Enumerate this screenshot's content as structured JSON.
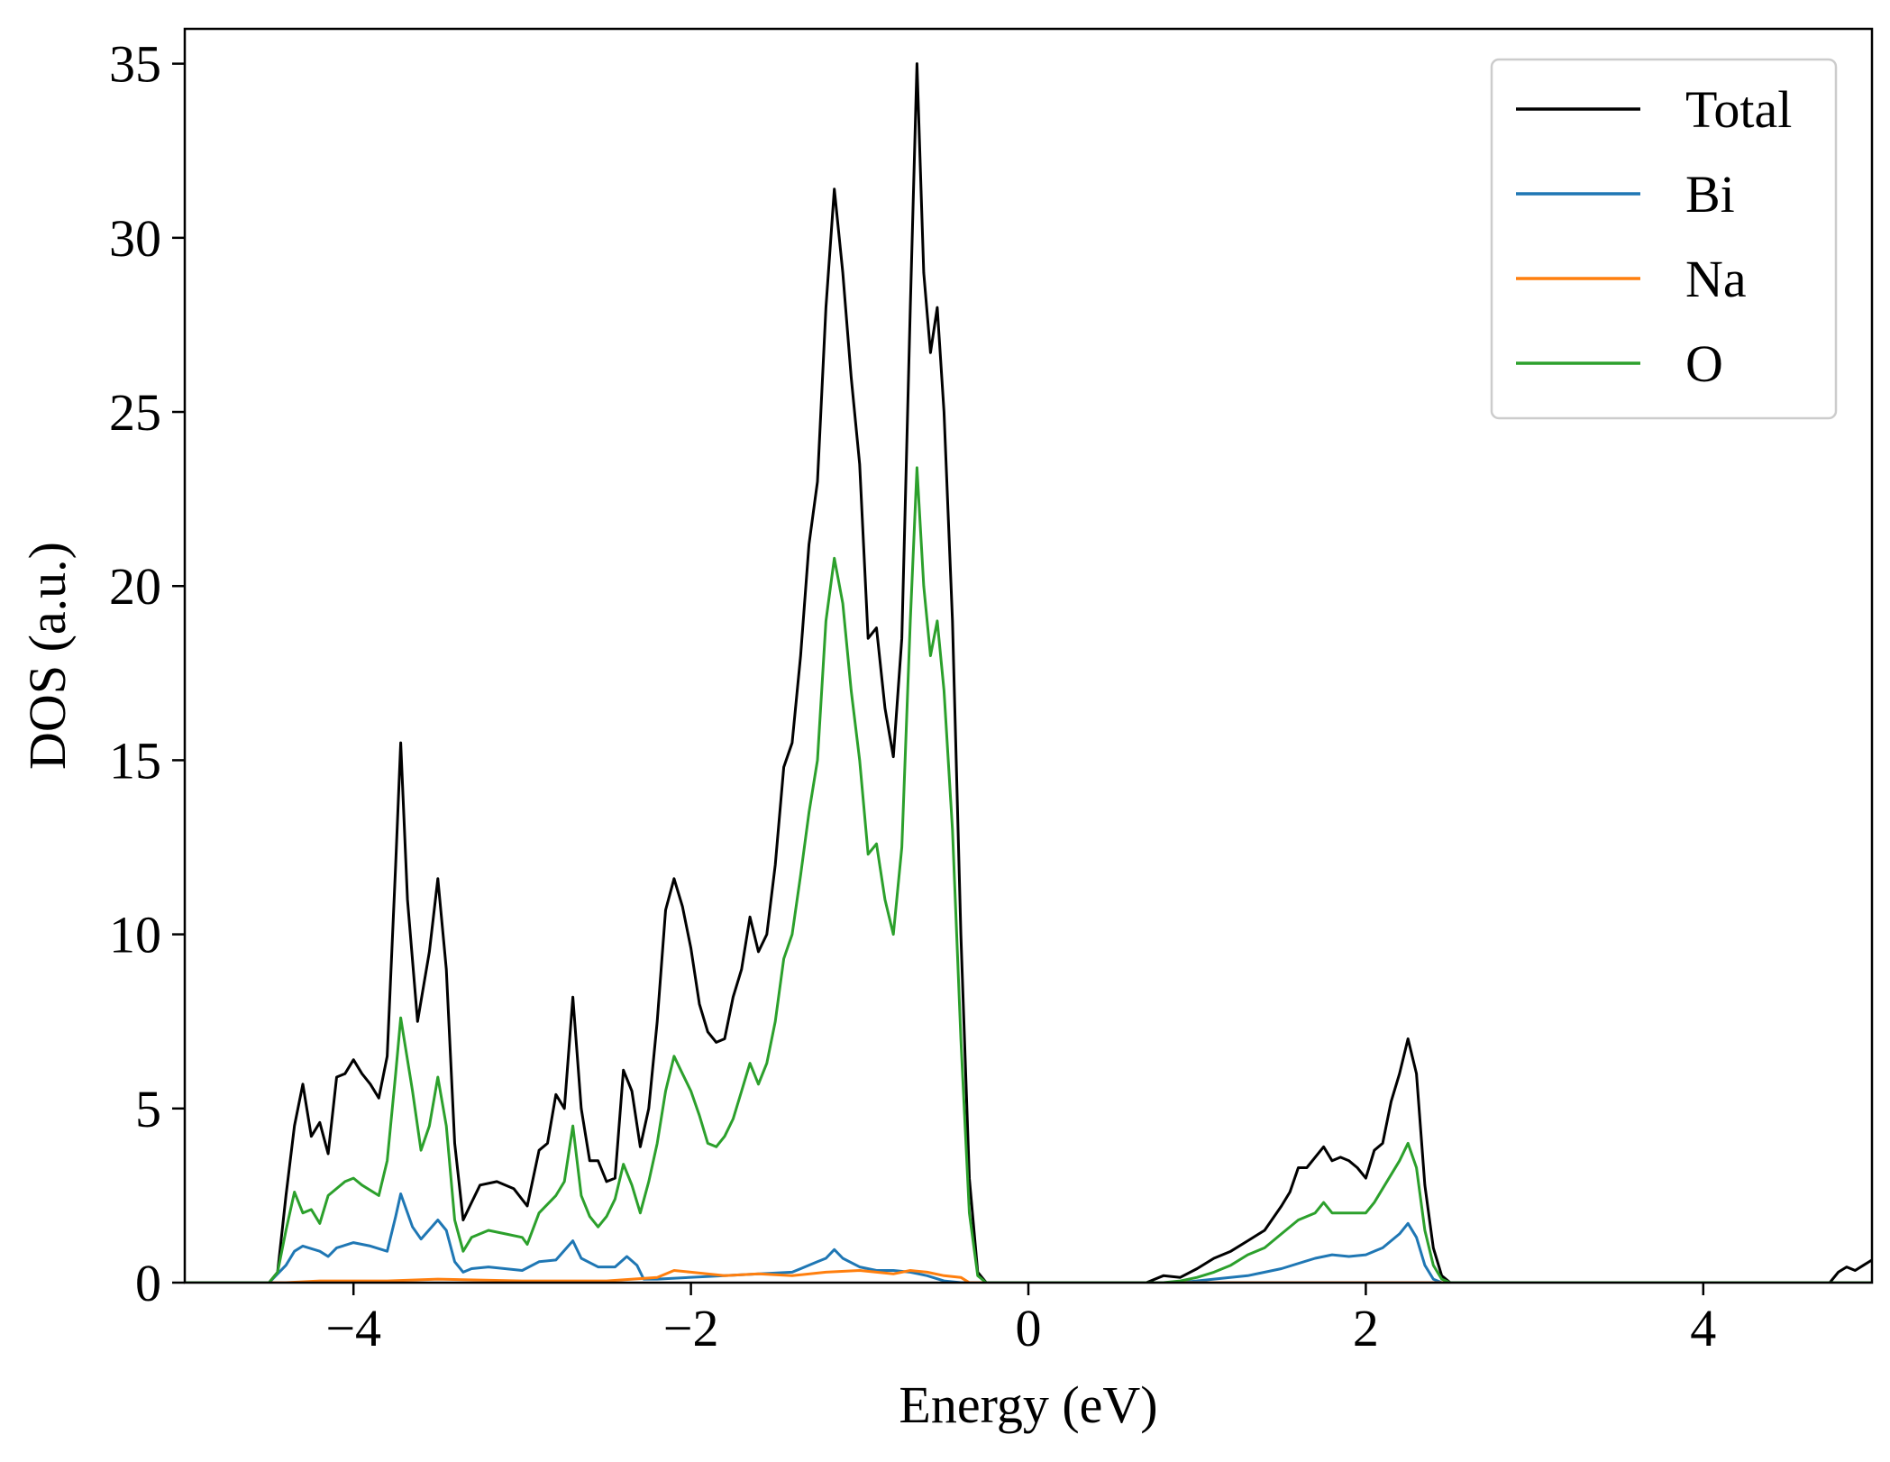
{
  "chart_data": {
    "type": "line",
    "title": "",
    "xlabel": "Energy (eV)",
    "ylabel": "DOS (a.u.)",
    "xlim": [
      -5,
      5
    ],
    "ylim": [
      0,
      36
    ],
    "xticks": [
      -4,
      -2,
      0,
      2,
      4
    ],
    "xtick_labels": [
      "−4",
      "−2",
      "0",
      "2",
      "4"
    ],
    "yticks": [
      0,
      5,
      10,
      15,
      20,
      25,
      30,
      35
    ],
    "ytick_labels": [
      "0",
      "5",
      "10",
      "15",
      "20",
      "25",
      "30",
      "35"
    ],
    "grid": false,
    "legend_position": "top-right",
    "series": [
      {
        "name": "Total",
        "color": "#000000",
        "points": [
          [
            -5,
            0
          ],
          [
            -4.5,
            0
          ],
          [
            -4.45,
            0.3
          ],
          [
            -4.4,
            2.5
          ],
          [
            -4.35,
            4.5
          ],
          [
            -4.3,
            5.7
          ],
          [
            -4.25,
            4.2
          ],
          [
            -4.2,
            4.6
          ],
          [
            -4.15,
            3.7
          ],
          [
            -4.1,
            5.9
          ],
          [
            -4.05,
            6.0
          ],
          [
            -4.0,
            6.4
          ],
          [
            -3.95,
            6.0
          ],
          [
            -3.9,
            5.7
          ],
          [
            -3.85,
            5.3
          ],
          [
            -3.8,
            6.5
          ],
          [
            -3.75,
            12.0
          ],
          [
            -3.72,
            15.5
          ],
          [
            -3.68,
            11.0
          ],
          [
            -3.62,
            7.5
          ],
          [
            -3.55,
            9.5
          ],
          [
            -3.5,
            11.6
          ],
          [
            -3.45,
            9.0
          ],
          [
            -3.4,
            4.0
          ],
          [
            -3.35,
            1.8
          ],
          [
            -3.3,
            2.3
          ],
          [
            -3.25,
            2.8
          ],
          [
            -3.15,
            2.9
          ],
          [
            -3.05,
            2.7
          ],
          [
            -2.97,
            2.2
          ],
          [
            -2.9,
            3.8
          ],
          [
            -2.85,
            4.0
          ],
          [
            -2.8,
            5.4
          ],
          [
            -2.75,
            5.0
          ],
          [
            -2.7,
            8.2
          ],
          [
            -2.65,
            5.0
          ],
          [
            -2.6,
            3.5
          ],
          [
            -2.55,
            3.5
          ],
          [
            -2.5,
            2.9
          ],
          [
            -2.45,
            3.0
          ],
          [
            -2.4,
            6.1
          ],
          [
            -2.35,
            5.5
          ],
          [
            -2.3,
            3.9
          ],
          [
            -2.25,
            5.0
          ],
          [
            -2.2,
            7.5
          ],
          [
            -2.15,
            10.7
          ],
          [
            -2.1,
            11.6
          ],
          [
            -2.05,
            10.8
          ],
          [
            -2.0,
            9.6
          ],
          [
            -1.95,
            8.0
          ],
          [
            -1.9,
            7.2
          ],
          [
            -1.85,
            6.9
          ],
          [
            -1.8,
            7.0
          ],
          [
            -1.75,
            8.2
          ],
          [
            -1.7,
            9.0
          ],
          [
            -1.65,
            10.5
          ],
          [
            -1.6,
            9.5
          ],
          [
            -1.55,
            10.0
          ],
          [
            -1.5,
            12.0
          ],
          [
            -1.45,
            14.8
          ],
          [
            -1.4,
            15.5
          ],
          [
            -1.35,
            18.0
          ],
          [
            -1.3,
            21.2
          ],
          [
            -1.25,
            23.0
          ],
          [
            -1.2,
            28.0
          ],
          [
            -1.15,
            31.4
          ],
          [
            -1.1,
            29.0
          ],
          [
            -1.05,
            26.0
          ],
          [
            -1.0,
            23.5
          ],
          [
            -0.95,
            18.5
          ],
          [
            -0.9,
            18.8
          ],
          [
            -0.85,
            16.5
          ],
          [
            -0.8,
            15.1
          ],
          [
            -0.75,
            18.5
          ],
          [
            -0.7,
            28.0
          ],
          [
            -0.66,
            35.0
          ],
          [
            -0.62,
            29.0
          ],
          [
            -0.58,
            26.7
          ],
          [
            -0.54,
            28.0
          ],
          [
            -0.5,
            25.0
          ],
          [
            -0.45,
            19.0
          ],
          [
            -0.4,
            10.0
          ],
          [
            -0.35,
            3.0
          ],
          [
            -0.3,
            0.3
          ],
          [
            -0.25,
            0
          ],
          [
            0.7,
            0
          ],
          [
            0.8,
            0.2
          ],
          [
            0.9,
            0.15
          ],
          [
            1.0,
            0.4
          ],
          [
            1.1,
            0.7
          ],
          [
            1.2,
            0.9
          ],
          [
            1.3,
            1.2
          ],
          [
            1.4,
            1.5
          ],
          [
            1.5,
            2.2
          ],
          [
            1.55,
            2.6
          ],
          [
            1.6,
            3.3
          ],
          [
            1.65,
            3.3
          ],
          [
            1.7,
            3.6
          ],
          [
            1.75,
            3.9
          ],
          [
            1.8,
            3.5
          ],
          [
            1.85,
            3.6
          ],
          [
            1.9,
            3.5
          ],
          [
            1.95,
            3.3
          ],
          [
            2.0,
            3.0
          ],
          [
            2.05,
            3.8
          ],
          [
            2.1,
            4.0
          ],
          [
            2.15,
            5.2
          ],
          [
            2.2,
            6.0
          ],
          [
            2.25,
            7.0
          ],
          [
            2.3,
            6.0
          ],
          [
            2.35,
            2.8
          ],
          [
            2.4,
            1.0
          ],
          [
            2.45,
            0.2
          ],
          [
            2.5,
            0
          ],
          [
            4.75,
            0
          ],
          [
            4.8,
            0.3
          ],
          [
            4.85,
            0.45
          ],
          [
            4.9,
            0.35
          ],
          [
            4.95,
            0.5
          ],
          [
            5.0,
            0.65
          ]
        ]
      },
      {
        "name": "Bi",
        "color": "#1f77b4",
        "points": [
          [
            -5,
            0
          ],
          [
            -4.5,
            0
          ],
          [
            -4.4,
            0.5
          ],
          [
            -4.35,
            0.9
          ],
          [
            -4.3,
            1.05
          ],
          [
            -4.2,
            0.9
          ],
          [
            -4.15,
            0.75
          ],
          [
            -4.1,
            1.0
          ],
          [
            -4.0,
            1.15
          ],
          [
            -3.9,
            1.05
          ],
          [
            -3.8,
            0.9
          ],
          [
            -3.75,
            1.9
          ],
          [
            -3.72,
            2.55
          ],
          [
            -3.65,
            1.6
          ],
          [
            -3.6,
            1.25
          ],
          [
            -3.5,
            1.8
          ],
          [
            -3.45,
            1.5
          ],
          [
            -3.4,
            0.6
          ],
          [
            -3.35,
            0.3
          ],
          [
            -3.3,
            0.4
          ],
          [
            -3.2,
            0.45
          ],
          [
            -3.0,
            0.35
          ],
          [
            -2.9,
            0.6
          ],
          [
            -2.8,
            0.65
          ],
          [
            -2.7,
            1.2
          ],
          [
            -2.65,
            0.7
          ],
          [
            -2.55,
            0.45
          ],
          [
            -2.45,
            0.45
          ],
          [
            -2.38,
            0.75
          ],
          [
            -2.32,
            0.5
          ],
          [
            -2.28,
            0.1
          ],
          [
            -2.2,
            0.1
          ],
          [
            -1.8,
            0.2
          ],
          [
            -1.4,
            0.3
          ],
          [
            -1.25,
            0.6
          ],
          [
            -1.2,
            0.7
          ],
          [
            -1.15,
            0.95
          ],
          [
            -1.1,
            0.7
          ],
          [
            -1.0,
            0.45
          ],
          [
            -0.9,
            0.35
          ],
          [
            -0.8,
            0.35
          ],
          [
            -0.7,
            0.3
          ],
          [
            -0.6,
            0.2
          ],
          [
            -0.5,
            0.05
          ],
          [
            -0.4,
            0
          ],
          [
            0.9,
            0
          ],
          [
            1.1,
            0.1
          ],
          [
            1.3,
            0.2
          ],
          [
            1.5,
            0.4
          ],
          [
            1.7,
            0.7
          ],
          [
            1.8,
            0.8
          ],
          [
            1.9,
            0.75
          ],
          [
            2.0,
            0.8
          ],
          [
            2.1,
            1.0
          ],
          [
            2.2,
            1.4
          ],
          [
            2.25,
            1.7
          ],
          [
            2.3,
            1.3
          ],
          [
            2.35,
            0.5
          ],
          [
            2.4,
            0.1
          ],
          [
            2.45,
            0
          ],
          [
            5,
            0
          ]
        ]
      },
      {
        "name": "Na",
        "color": "#ff7f0e",
        "points": [
          [
            -5,
            0
          ],
          [
            -4.4,
            0
          ],
          [
            -4.2,
            0.05
          ],
          [
            -3.8,
            0.05
          ],
          [
            -3.5,
            0.1
          ],
          [
            -3.0,
            0.05
          ],
          [
            -2.5,
            0.05
          ],
          [
            -2.2,
            0.15
          ],
          [
            -2.1,
            0.35
          ],
          [
            -2.0,
            0.3
          ],
          [
            -1.8,
            0.2
          ],
          [
            -1.6,
            0.25
          ],
          [
            -1.4,
            0.2
          ],
          [
            -1.2,
            0.3
          ],
          [
            -1.0,
            0.35
          ],
          [
            -0.9,
            0.3
          ],
          [
            -0.8,
            0.25
          ],
          [
            -0.7,
            0.35
          ],
          [
            -0.6,
            0.3
          ],
          [
            -0.5,
            0.2
          ],
          [
            -0.4,
            0.15
          ],
          [
            -0.35,
            0
          ],
          [
            5,
            0
          ]
        ]
      },
      {
        "name": "O",
        "color": "#2ca02c",
        "points": [
          [
            -5,
            0
          ],
          [
            -4.5,
            0
          ],
          [
            -4.45,
            0.3
          ],
          [
            -4.4,
            1.5
          ],
          [
            -4.35,
            2.6
          ],
          [
            -4.3,
            2.0
          ],
          [
            -4.25,
            2.1
          ],
          [
            -4.2,
            1.7
          ],
          [
            -4.15,
            2.5
          ],
          [
            -4.05,
            2.9
          ],
          [
            -4.0,
            3.0
          ],
          [
            -3.95,
            2.8
          ],
          [
            -3.85,
            2.5
          ],
          [
            -3.8,
            3.5
          ],
          [
            -3.75,
            6.0
          ],
          [
            -3.72,
            7.6
          ],
          [
            -3.65,
            5.5
          ],
          [
            -3.6,
            3.8
          ],
          [
            -3.55,
            4.5
          ],
          [
            -3.5,
            5.9
          ],
          [
            -3.45,
            4.5
          ],
          [
            -3.4,
            1.8
          ],
          [
            -3.35,
            0.9
          ],
          [
            -3.3,
            1.3
          ],
          [
            -3.2,
            1.5
          ],
          [
            -3.1,
            1.4
          ],
          [
            -3.0,
            1.3
          ],
          [
            -2.97,
            1.1
          ],
          [
            -2.9,
            2.0
          ],
          [
            -2.8,
            2.5
          ],
          [
            -2.75,
            2.9
          ],
          [
            -2.7,
            4.5
          ],
          [
            -2.65,
            2.5
          ],
          [
            -2.6,
            1.9
          ],
          [
            -2.55,
            1.6
          ],
          [
            -2.5,
            1.9
          ],
          [
            -2.45,
            2.4
          ],
          [
            -2.4,
            3.4
          ],
          [
            -2.35,
            2.8
          ],
          [
            -2.3,
            2.0
          ],
          [
            -2.25,
            2.9
          ],
          [
            -2.2,
            4.0
          ],
          [
            -2.15,
            5.5
          ],
          [
            -2.1,
            6.5
          ],
          [
            -2.05,
            6.0
          ],
          [
            -2.0,
            5.5
          ],
          [
            -1.95,
            4.8
          ],
          [
            -1.9,
            4.0
          ],
          [
            -1.85,
            3.9
          ],
          [
            -1.8,
            4.2
          ],
          [
            -1.75,
            4.7
          ],
          [
            -1.7,
            5.5
          ],
          [
            -1.65,
            6.3
          ],
          [
            -1.6,
            5.7
          ],
          [
            -1.55,
            6.3
          ],
          [
            -1.5,
            7.5
          ],
          [
            -1.45,
            9.3
          ],
          [
            -1.4,
            10.0
          ],
          [
            -1.35,
            11.7
          ],
          [
            -1.3,
            13.5
          ],
          [
            -1.25,
            15.0
          ],
          [
            -1.2,
            19.0
          ],
          [
            -1.15,
            20.8
          ],
          [
            -1.1,
            19.5
          ],
          [
            -1.05,
            17.0
          ],
          [
            -1.0,
            15.0
          ],
          [
            -0.95,
            12.3
          ],
          [
            -0.9,
            12.6
          ],
          [
            -0.85,
            11.0
          ],
          [
            -0.8,
            10.0
          ],
          [
            -0.75,
            12.5
          ],
          [
            -0.7,
            19.0
          ],
          [
            -0.66,
            23.4
          ],
          [
            -0.62,
            20.0
          ],
          [
            -0.58,
            18.0
          ],
          [
            -0.54,
            19.0
          ],
          [
            -0.5,
            17.0
          ],
          [
            -0.45,
            13.0
          ],
          [
            -0.4,
            7.0
          ],
          [
            -0.35,
            2.0
          ],
          [
            -0.3,
            0.2
          ],
          [
            -0.25,
            0
          ],
          [
            0.8,
            0
          ],
          [
            0.9,
            0.05
          ],
          [
            1.0,
            0.15
          ],
          [
            1.1,
            0.3
          ],
          [
            1.2,
            0.5
          ],
          [
            1.3,
            0.8
          ],
          [
            1.4,
            1.0
          ],
          [
            1.5,
            1.4
          ],
          [
            1.6,
            1.8
          ],
          [
            1.7,
            2.0
          ],
          [
            1.75,
            2.3
          ],
          [
            1.8,
            2.0
          ],
          [
            1.9,
            2.0
          ],
          [
            2.0,
            2.0
          ],
          [
            2.05,
            2.3
          ],
          [
            2.1,
            2.7
          ],
          [
            2.2,
            3.5
          ],
          [
            2.25,
            4.0
          ],
          [
            2.3,
            3.3
          ],
          [
            2.35,
            1.5
          ],
          [
            2.4,
            0.5
          ],
          [
            2.45,
            0.1
          ],
          [
            2.5,
            0
          ],
          [
            5,
            0
          ]
        ]
      }
    ]
  }
}
